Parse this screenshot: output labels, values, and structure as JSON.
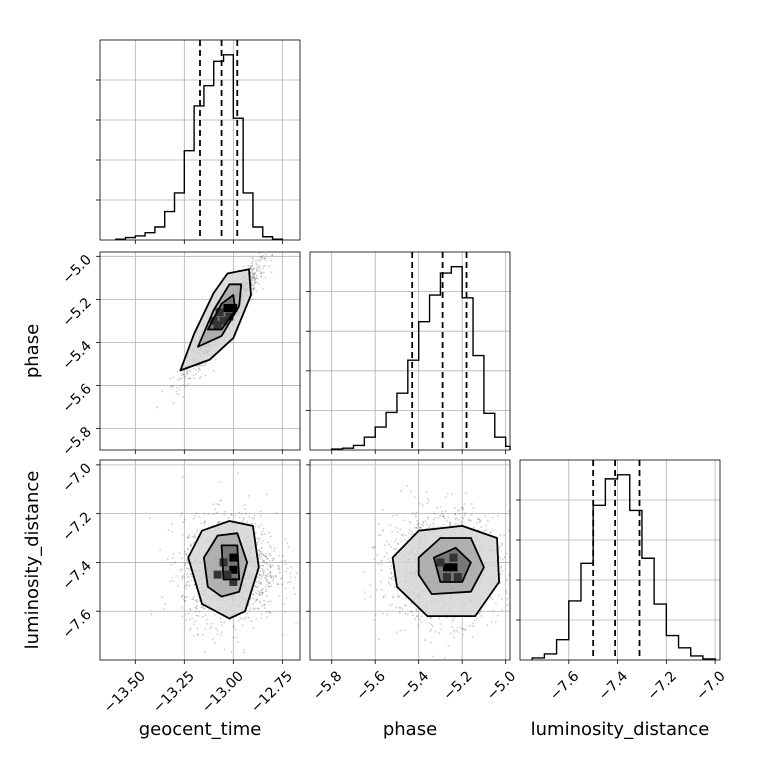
{
  "chart_data": {
    "type": "corner",
    "parameters": [
      "geocent_time",
      "phase",
      "luminosity_distance"
    ],
    "axis_labels": {
      "x": [
        "geocent_time",
        "phase",
        "luminosity_distance"
      ],
      "y": [
        "phase",
        "luminosity_distance"
      ]
    },
    "ranges": {
      "geocent_time": [
        -13.68,
        -12.66
      ],
      "phase": [
        -5.9,
        -4.98
      ],
      "luminosity_distance": [
        -7.8,
        -6.98
      ]
    },
    "ticks": {
      "geocent_time": [
        -13.5,
        -13.25,
        -13.0,
        -12.75
      ],
      "phase": [
        -5.8,
        -5.6,
        -5.4,
        -5.2,
        -5.0
      ],
      "luminosity_distance": [
        -7.6,
        -7.4,
        -7.2,
        -7.0
      ]
    },
    "tick_labels": {
      "geocent_time": [
        "−13.50",
        "−13.25",
        "−13.00",
        "−12.75"
      ],
      "phase": [
        "−5.8",
        "−5.6",
        "−5.4",
        "−5.2",
        "−5.0"
      ],
      "luminosity_distance": [
        "−7.6",
        "−7.4",
        "−7.2",
        "−7.0"
      ]
    },
    "quantiles": {
      "geocent_time": [
        -13.17,
        -13.06,
        -12.98
      ],
      "phase": [
        -5.43,
        -5.29,
        -5.18
      ],
      "luminosity_distance": [
        -7.5,
        -7.41,
        -7.31
      ]
    },
    "histograms": {
      "geocent_time": {
        "edges": [
          -13.6,
          -13.55,
          -13.5,
          -13.45,
          -13.4,
          -13.35,
          -13.3,
          -13.25,
          -13.2,
          -13.15,
          -13.1,
          -13.05,
          -13.0,
          -12.95,
          -12.9,
          -12.85,
          -12.8,
          -12.75
        ],
        "counts": [
          1,
          3,
          5,
          9,
          16,
          35,
          58,
          110,
          165,
          190,
          220,
          228,
          150,
          58,
          16,
          4,
          1
        ]
      },
      "phase": {
        "edges": [
          -5.8,
          -5.75,
          -5.7,
          -5.65,
          -5.6,
          -5.55,
          -5.5,
          -5.45,
          -5.4,
          -5.35,
          -5.3,
          -5.25,
          -5.2,
          -5.15,
          -5.1,
          -5.05,
          -5.0,
          -4.98
        ],
        "counts": [
          1,
          2,
          5,
          14,
          25,
          41,
          62,
          98,
          140,
          169,
          193,
          200,
          166,
          103,
          40,
          14,
          4
        ]
      },
      "luminosity_distance": {
        "edges": [
          -7.75,
          -7.7,
          -7.65,
          -7.6,
          -7.55,
          -7.5,
          -7.45,
          -7.4,
          -7.35,
          -7.3,
          -7.25,
          -7.2,
          -7.15,
          -7.1,
          -7.05,
          -7.0
        ],
        "counts": [
          2,
          6,
          20,
          58,
          95,
          152,
          178,
          182,
          147,
          100,
          55,
          24,
          12,
          4,
          1
        ]
      }
    },
    "pairs": [
      {
        "x": "geocent_time",
        "y": "phase",
        "mean": [
          -13.05,
          -5.29
        ],
        "sd": [
          0.09,
          0.12
        ],
        "corr": 0.93,
        "contours": [
          [
            [
              -13.27,
              -5.53
            ],
            [
              -13.2,
              -5.36
            ],
            [
              -13.1,
              -5.17
            ],
            [
              -13.03,
              -5.08
            ],
            [
              -12.92,
              -5.06
            ],
            [
              -12.91,
              -5.18
            ],
            [
              -13.0,
              -5.38
            ],
            [
              -13.12,
              -5.48
            ],
            [
              -13.27,
              -5.53
            ]
          ],
          [
            [
              -13.18,
              -5.42
            ],
            [
              -13.1,
              -5.25
            ],
            [
              -13.02,
              -5.13
            ],
            [
              -12.96,
              -5.13
            ],
            [
              -12.97,
              -5.23
            ],
            [
              -13.06,
              -5.37
            ],
            [
              -13.18,
              -5.42
            ]
          ],
          [
            [
              -13.13,
              -5.34
            ],
            [
              -13.06,
              -5.22
            ],
            [
              -13.0,
              -5.18
            ],
            [
              -12.99,
              -5.25
            ],
            [
              -13.06,
              -5.34
            ],
            [
              -13.13,
              -5.34
            ]
          ]
        ],
        "dense_cells": [
          [
            -13.0,
            -5.24
          ],
          [
            -13.03,
            -5.24
          ],
          [
            -13.05,
            -5.3
          ],
          [
            -13.08,
            -5.32
          ],
          [
            -13.1,
            -5.3
          ],
          [
            -13.02,
            -5.28
          ],
          [
            -13.07,
            -5.26
          ]
        ]
      },
      {
        "x": "geocent_time",
        "y": "luminosity_distance",
        "mean": [
          -13.02,
          -7.43
        ],
        "sd": [
          0.12,
          0.11
        ],
        "corr": 0.05,
        "contours": [
          [
            [
              -13.23,
              -7.38
            ],
            [
              -13.16,
              -7.27
            ],
            [
              -13.02,
              -7.23
            ],
            [
              -12.9,
              -7.25
            ],
            [
              -12.87,
              -7.42
            ],
            [
              -12.94,
              -7.6
            ],
            [
              -13.02,
              -7.63
            ],
            [
              -13.16,
              -7.57
            ],
            [
              -13.23,
              -7.38
            ]
          ],
          [
            [
              -13.15,
              -7.38
            ],
            [
              -13.08,
              -7.29
            ],
            [
              -12.98,
              -7.28
            ],
            [
              -12.93,
              -7.4
            ],
            [
              -12.97,
              -7.52
            ],
            [
              -13.06,
              -7.54
            ],
            [
              -13.13,
              -7.5
            ],
            [
              -13.15,
              -7.38
            ]
          ],
          [
            [
              -13.06,
              -7.33
            ],
            [
              -12.98,
              -7.33
            ],
            [
              -12.97,
              -7.47
            ],
            [
              -13.05,
              -7.47
            ],
            [
              -13.06,
              -7.33
            ]
          ]
        ],
        "dense_cells": [
          [
            -13.0,
            -7.38
          ],
          [
            -13.0,
            -7.43
          ],
          [
            -13.03,
            -7.45
          ],
          [
            -13.05,
            -7.4
          ],
          [
            -13.0,
            -7.48
          ],
          [
            -13.08,
            -7.45
          ]
        ]
      },
      {
        "x": "phase",
        "y": "luminosity_distance",
        "mean": [
          -5.29,
          -7.42
        ],
        "sd": [
          0.13,
          0.11
        ],
        "corr": 0.0,
        "contours": [
          [
            [
              -5.52,
              -7.38
            ],
            [
              -5.4,
              -7.27
            ],
            [
              -5.2,
              -7.25
            ],
            [
              -5.04,
              -7.3
            ],
            [
              -5.03,
              -7.48
            ],
            [
              -5.14,
              -7.62
            ],
            [
              -5.36,
              -7.62
            ],
            [
              -5.5,
              -7.5
            ],
            [
              -5.52,
              -7.38
            ]
          ],
          [
            [
              -5.4,
              -7.38
            ],
            [
              -5.3,
              -7.3
            ],
            [
              -5.16,
              -7.3
            ],
            [
              -5.1,
              -7.42
            ],
            [
              -5.16,
              -7.52
            ],
            [
              -5.34,
              -7.53
            ],
            [
              -5.4,
              -7.45
            ],
            [
              -5.4,
              -7.38
            ]
          ],
          [
            [
              -5.33,
              -7.38
            ],
            [
              -5.23,
              -7.34
            ],
            [
              -5.16,
              -7.4
            ],
            [
              -5.2,
              -7.48
            ],
            [
              -5.3,
              -7.48
            ],
            [
              -5.33,
              -7.38
            ]
          ]
        ],
        "dense_cells": [
          [
            -5.27,
            -7.42
          ],
          [
            -5.24,
            -7.42
          ],
          [
            -5.24,
            -7.38
          ],
          [
            -5.27,
            -7.46
          ],
          [
            -5.22,
            -7.46
          ],
          [
            -5.3,
            -7.4
          ]
        ]
      }
    ]
  }
}
